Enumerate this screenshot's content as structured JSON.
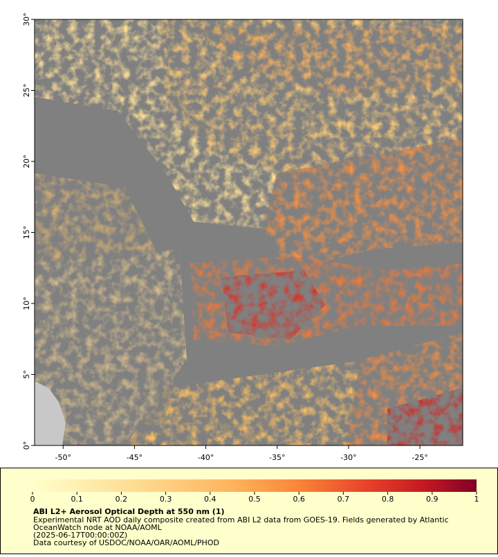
{
  "map": {
    "xlim": [
      -52,
      -22
    ],
    "ylim": [
      0,
      30
    ],
    "xticks": [
      {
        "value": -50,
        "label": "-50°"
      },
      {
        "value": -45,
        "label": "-45°"
      },
      {
        "value": -40,
        "label": "-40°"
      },
      {
        "value": -35,
        "label": "-35°"
      },
      {
        "value": -30,
        "label": "-30°"
      },
      {
        "value": -25,
        "label": "-25°"
      }
    ],
    "yticks": [
      {
        "value": 0,
        "label": "0°"
      },
      {
        "value": 5,
        "label": "5°"
      },
      {
        "value": 10,
        "label": "10°"
      },
      {
        "value": 15,
        "label": "15°"
      },
      {
        "value": 20,
        "label": "20°"
      },
      {
        "value": 25,
        "label": "25°"
      },
      {
        "value": 30,
        "label": "30°"
      }
    ]
  },
  "colorbar": {
    "lim": [
      0,
      1
    ],
    "ticks": [
      0,
      0.1,
      0.2,
      0.3,
      0.4,
      0.5,
      0.6,
      0.7,
      0.8,
      0.9,
      1
    ]
  },
  "caption": {
    "title": "ABI L2+ Aerosol Optical Depth at 550 nm (1)",
    "lines": [
      "Experimental NRT AOD daily composite created from ABI L2 data from GOES-19. Fields generated by Atlantic",
      "OceanWatch node at NOAA/AOML",
      "(2025-06-17T00:00:00Z)",
      "Data courtesy of USDOC/NOAA/OAR/AOML/PHOD"
    ]
  }
}
